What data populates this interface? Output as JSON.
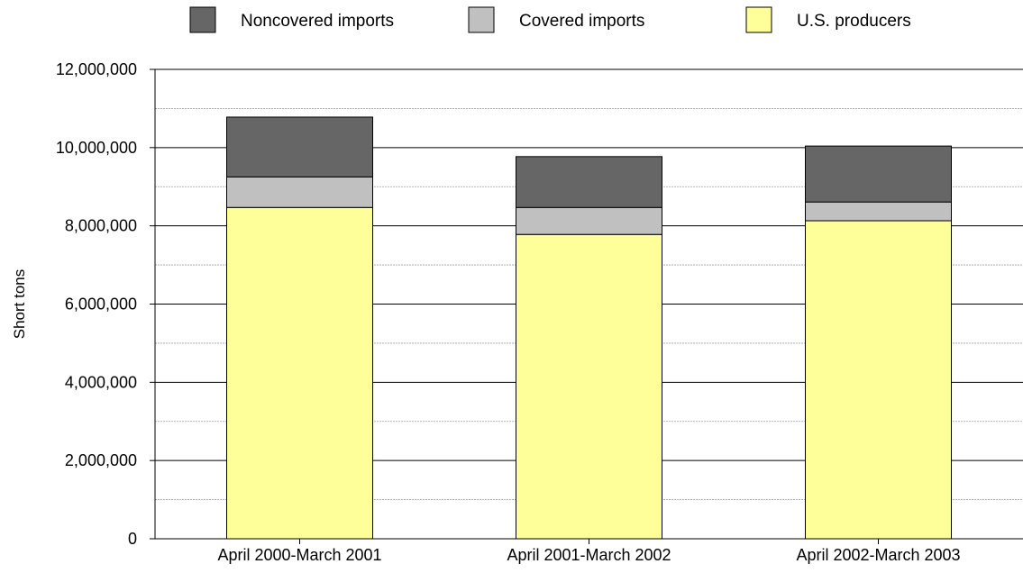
{
  "chart_data": {
    "type": "bar",
    "stacked": true,
    "categories": [
      "April 2000-March 2001",
      "April 2001-March 2002",
      "April 2002-March 2003"
    ],
    "series": [
      {
        "name": "U.S. producers",
        "color": "#ffff99",
        "values": [
          8470000,
          7780000,
          8130000
        ]
      },
      {
        "name": "Covered imports",
        "color": "#c0c0c0",
        "values": [
          780000,
          690000,
          480000
        ]
      },
      {
        "name": "Noncovered imports",
        "color": "#666666",
        "values": [
          1530000,
          1300000,
          1430000
        ]
      }
    ],
    "legend_order": [
      "Noncovered imports",
      "Covered imports",
      "U.S. producers"
    ],
    "legend_position": "top",
    "ylabel": "Short tons",
    "ylim": [
      0,
      12000000
    ],
    "yticks": [
      0,
      2000000,
      4000000,
      6000000,
      8000000,
      10000000,
      12000000
    ],
    "ytick_labels": [
      "0",
      "2,000,000",
      "4,000,000",
      "6,000,000",
      "8,000,000",
      "10,000,000",
      "12,000,000"
    ],
    "minor_grid_step": 1000000,
    "grid": true
  }
}
